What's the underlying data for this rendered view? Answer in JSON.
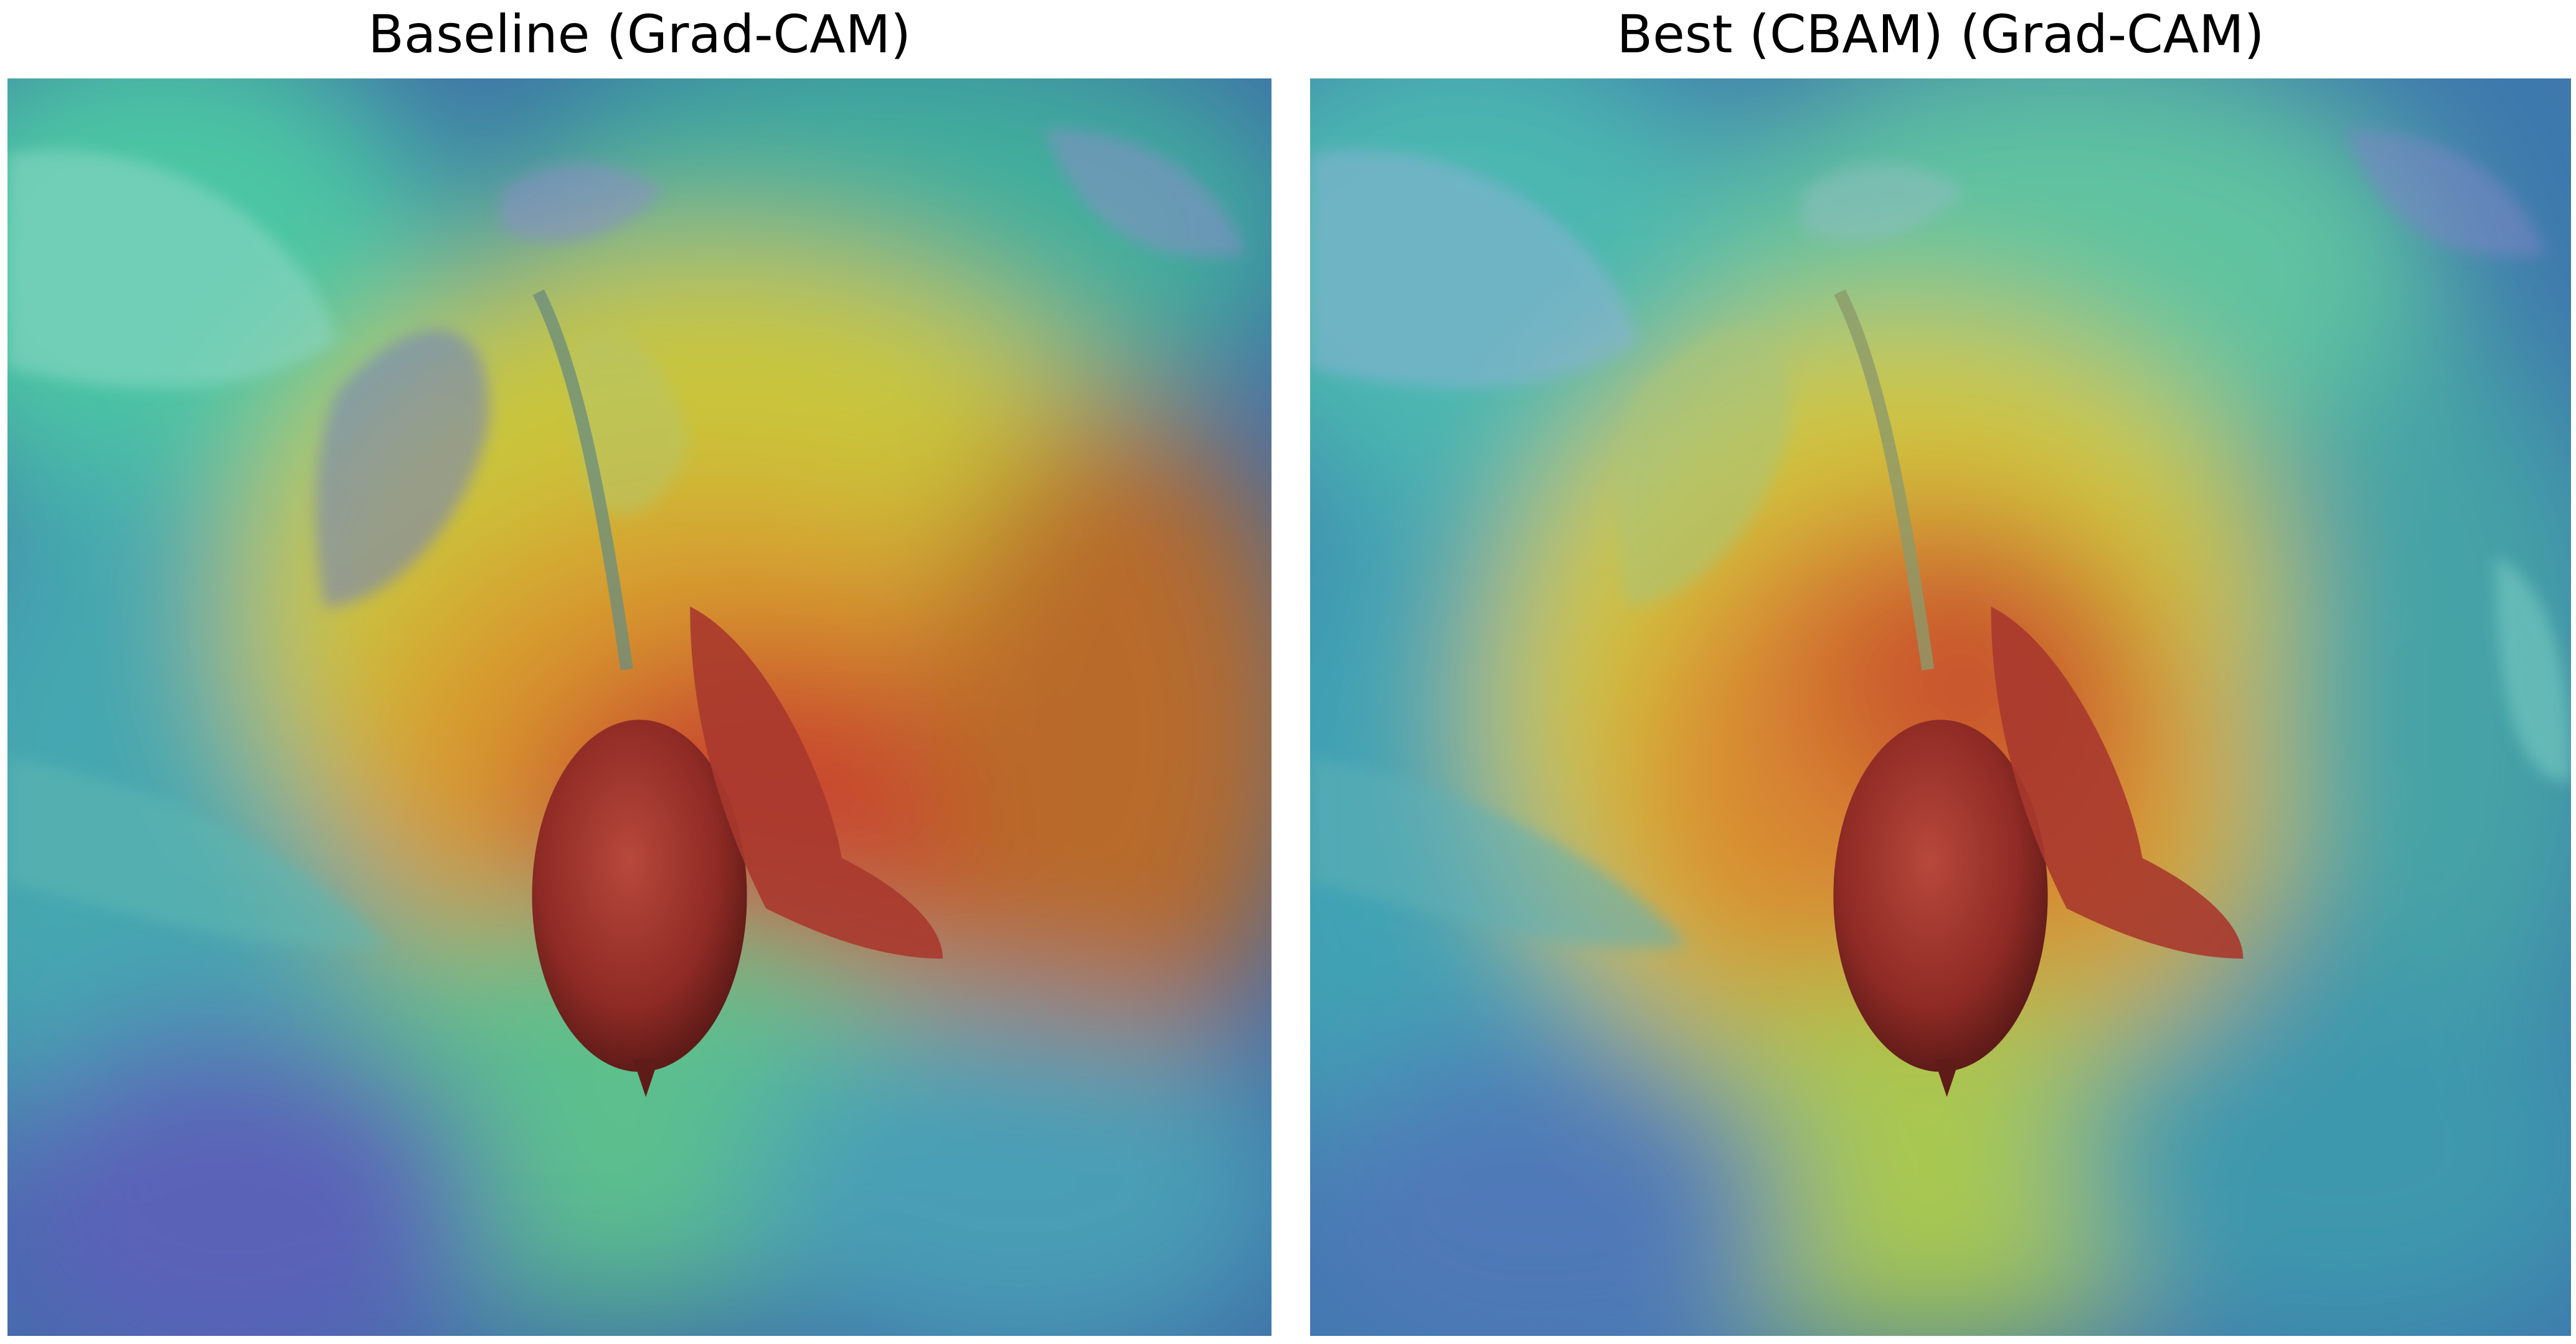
{
  "panels": [
    {
      "title": "Baseline (Grad-CAM)"
    },
    {
      "title": "Best (CBAM) (Grad-CAM)"
    }
  ]
}
